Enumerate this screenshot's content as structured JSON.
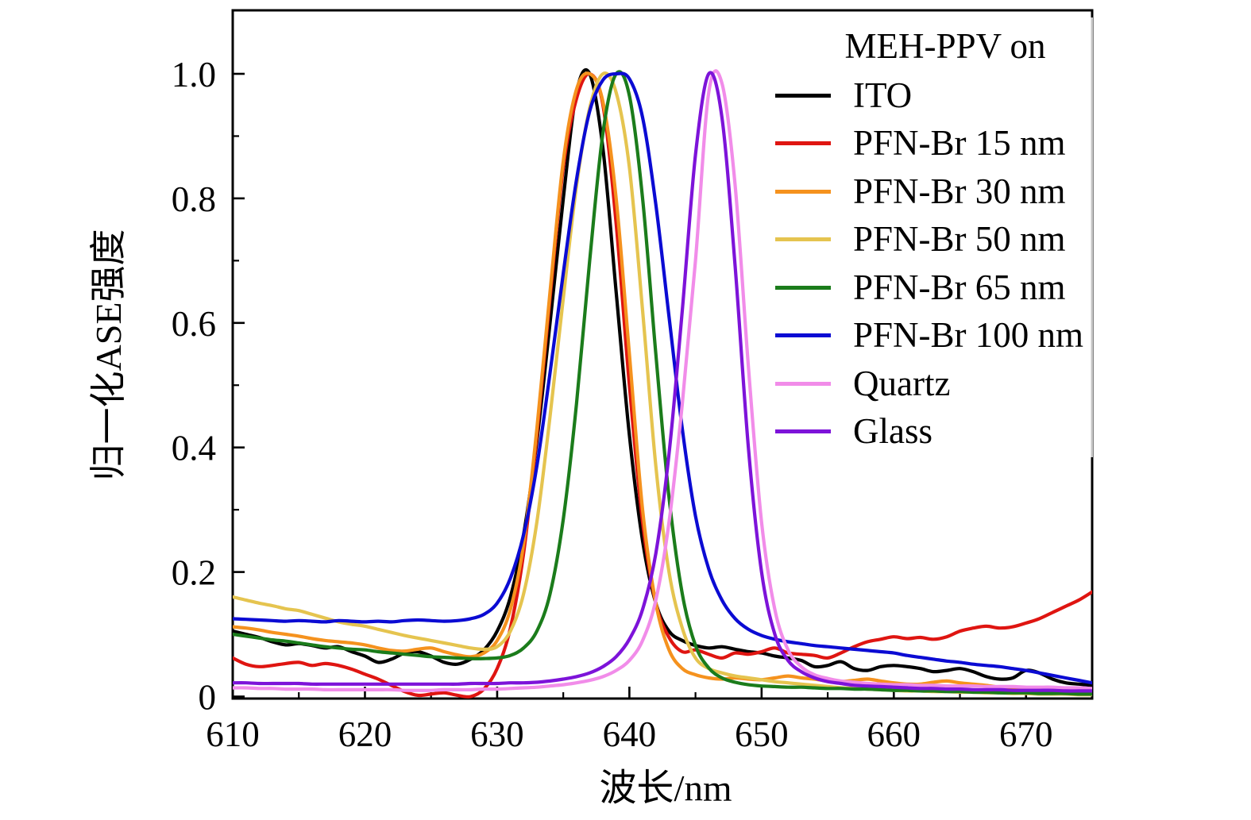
{
  "axes": {
    "x": {
      "label": "波长/nm",
      "min": 610,
      "max": 675,
      "major_ticks": [
        610,
        620,
        630,
        640,
        650,
        660,
        670
      ],
      "major_tick_labels": [
        "610",
        "620",
        "630",
        "640",
        "650",
        "660",
        "670"
      ],
      "minor_ticks": [
        615,
        625,
        635,
        645,
        655,
        665
      ]
    },
    "y": {
      "label": "归一化ASE强度",
      "min": 0,
      "max": 1.1,
      "major_ticks": [
        0,
        0.2,
        0.4,
        0.6,
        0.8,
        1.0
      ],
      "major_tick_labels": [
        "0",
        "0.2",
        "0.4",
        "0.6",
        "0.8",
        "1.0"
      ],
      "minor_ticks": [
        0.1,
        0.3,
        0.5,
        0.7,
        0.9
      ]
    }
  },
  "legend": {
    "title": "MEH-PPV on",
    "items": [
      {
        "label": "ITO",
        "color": "#000000"
      },
      {
        "label": "PFN-Br 15 nm",
        "color": "#DF1511"
      },
      {
        "label": "PFN-Br 30 nm",
        "color": "#F5921E"
      },
      {
        "label": "PFN-Br 50 nm",
        "color": "#E5C44F"
      },
      {
        "label": "PFN-Br 65 nm",
        "color": "#1B7C1B"
      },
      {
        "label": "PFN-Br 100 nm",
        "color": "#0B0BD3"
      },
      {
        "label": "Quartz",
        "color": "#F18CE9"
      },
      {
        "label": "Glass",
        "color": "#7D13D9"
      }
    ]
  },
  "chart_data": {
    "type": "line",
    "title": "",
    "xlabel": "波长/nm",
    "ylabel": "归一化ASE强度",
    "xlim": [
      610,
      675
    ],
    "ylim": [
      0,
      1.1
    ],
    "grid": false,
    "legend_position": "upper right",
    "x_unit": "nm",
    "x_start": 610,
    "x_step": 1,
    "series": [
      {
        "name": "ITO",
        "color": "#000000",
        "peak_nm": 637,
        "values": [
          0.105,
          0.1,
          0.095,
          0.088,
          0.083,
          0.085,
          0.082,
          0.078,
          0.08,
          0.072,
          0.065,
          0.055,
          0.06,
          0.07,
          0.072,
          0.065,
          0.055,
          0.052,
          0.06,
          0.075,
          0.105,
          0.16,
          0.26,
          0.41,
          0.6,
          0.8,
          0.97,
          1.0,
          0.88,
          0.65,
          0.42,
          0.25,
          0.15,
          0.105,
          0.09,
          0.082,
          0.078,
          0.08,
          0.076,
          0.072,
          0.07,
          0.065,
          0.062,
          0.058,
          0.048,
          0.05,
          0.056,
          0.045,
          0.042,
          0.048,
          0.05,
          0.048,
          0.045,
          0.04,
          0.042,
          0.045,
          0.04,
          0.032,
          0.028,
          0.03,
          0.042,
          0.038,
          0.028,
          0.022,
          0.02,
          0.018
        ]
      },
      {
        "name": "PFN-Br 15 nm",
        "color": "#DF1511",
        "peak_nm": 637,
        "values": [
          0.062,
          0.052,
          0.048,
          0.05,
          0.053,
          0.055,
          0.05,
          0.053,
          0.05,
          0.044,
          0.036,
          0.028,
          0.018,
          0.008,
          0.002,
          0.004,
          0.006,
          0.002,
          0.0,
          0.012,
          0.045,
          0.11,
          0.23,
          0.42,
          0.64,
          0.85,
          0.96,
          1.0,
          0.95,
          0.76,
          0.5,
          0.28,
          0.15,
          0.095,
          0.072,
          0.075,
          0.068,
          0.062,
          0.07,
          0.068,
          0.072,
          0.078,
          0.07,
          0.068,
          0.066,
          0.062,
          0.07,
          0.08,
          0.088,
          0.092,
          0.096,
          0.093,
          0.095,
          0.092,
          0.096,
          0.105,
          0.11,
          0.113,
          0.11,
          0.112,
          0.118,
          0.125,
          0.135,
          0.145,
          0.155,
          0.168
        ]
      },
      {
        "name": "PFN-Br 30 nm",
        "color": "#F5921E",
        "peak_nm": 637.5,
        "values": [
          0.112,
          0.11,
          0.107,
          0.103,
          0.1,
          0.097,
          0.093,
          0.09,
          0.088,
          0.086,
          0.083,
          0.078,
          0.074,
          0.073,
          0.076,
          0.078,
          0.072,
          0.067,
          0.064,
          0.07,
          0.09,
          0.14,
          0.245,
          0.43,
          0.65,
          0.86,
          0.975,
          1.0,
          0.955,
          0.8,
          0.55,
          0.3,
          0.15,
          0.075,
          0.045,
          0.035,
          0.03,
          0.028,
          0.03,
          0.028,
          0.027,
          0.03,
          0.033,
          0.03,
          0.028,
          0.025,
          0.024,
          0.026,
          0.028,
          0.025,
          0.022,
          0.02,
          0.02,
          0.023,
          0.025,
          0.022,
          0.02,
          0.018,
          0.015,
          0.013,
          0.012,
          0.013,
          0.012,
          0.01,
          0.012,
          0.01
        ]
      },
      {
        "name": "PFN-Br 50 nm",
        "color": "#E5C44F",
        "peak_nm": 638.3,
        "values": [
          0.16,
          0.155,
          0.15,
          0.146,
          0.141,
          0.138,
          0.132,
          0.126,
          0.12,
          0.116,
          0.113,
          0.108,
          0.103,
          0.098,
          0.094,
          0.09,
          0.086,
          0.082,
          0.078,
          0.076,
          0.08,
          0.105,
          0.165,
          0.28,
          0.45,
          0.64,
          0.82,
          0.945,
          1.0,
          0.97,
          0.85,
          0.62,
          0.37,
          0.2,
          0.11,
          0.062,
          0.045,
          0.038,
          0.033,
          0.03,
          0.027,
          0.024,
          0.022,
          0.02,
          0.018,
          0.016,
          0.014,
          0.013,
          0.012,
          0.011,
          0.01,
          0.009,
          0.009,
          0.008,
          0.008,
          0.007,
          0.007,
          0.006,
          0.006,
          0.005,
          0.005,
          0.004,
          0.004,
          0.004,
          0.003,
          0.003
        ]
      },
      {
        "name": "PFN-Br 65 nm",
        "color": "#1B7C1B",
        "peak_nm": 639,
        "values": [
          0.1,
          0.097,
          0.094,
          0.091,
          0.089,
          0.086,
          0.083,
          0.08,
          0.078,
          0.076,
          0.075,
          0.072,
          0.07,
          0.068,
          0.066,
          0.064,
          0.063,
          0.062,
          0.061,
          0.061,
          0.062,
          0.066,
          0.078,
          0.105,
          0.165,
          0.285,
          0.47,
          0.7,
          0.905,
          1.0,
          0.965,
          0.8,
          0.55,
          0.32,
          0.165,
          0.082,
          0.046,
          0.03,
          0.023,
          0.019,
          0.017,
          0.016,
          0.015,
          0.015,
          0.014,
          0.013,
          0.013,
          0.012,
          0.012,
          0.011,
          0.01,
          0.01,
          0.009,
          0.009,
          0.008,
          0.008,
          0.007,
          0.007,
          0.006,
          0.006,
          0.006,
          0.005,
          0.005,
          0.005,
          0.004,
          0.004
        ]
      },
      {
        "name": "PFN-Br 100 nm",
        "color": "#0B0BD3",
        "peak_nm": 639.3,
        "values": [
          0.125,
          0.124,
          0.123,
          0.122,
          0.121,
          0.122,
          0.121,
          0.12,
          0.122,
          0.121,
          0.12,
          0.121,
          0.12,
          0.122,
          0.123,
          0.122,
          0.121,
          0.122,
          0.125,
          0.132,
          0.15,
          0.19,
          0.26,
          0.37,
          0.52,
          0.68,
          0.83,
          0.94,
          0.99,
          1.0,
          0.992,
          0.93,
          0.79,
          0.61,
          0.43,
          0.29,
          0.205,
          0.155,
          0.125,
          0.108,
          0.098,
          0.092,
          0.088,
          0.085,
          0.082,
          0.08,
          0.078,
          0.076,
          0.074,
          0.072,
          0.07,
          0.066,
          0.063,
          0.06,
          0.057,
          0.055,
          0.052,
          0.05,
          0.048,
          0.045,
          0.042,
          0.038,
          0.034,
          0.03,
          0.026,
          0.022
        ]
      },
      {
        "name": "Quartz",
        "color": "#F18CE9",
        "peak_nm": 646.3,
        "values": [
          0.014,
          0.014,
          0.013,
          0.013,
          0.012,
          0.012,
          0.012,
          0.011,
          0.011,
          0.011,
          0.011,
          0.011,
          0.011,
          0.01,
          0.01,
          0.01,
          0.011,
          0.011,
          0.011,
          0.012,
          0.012,
          0.013,
          0.014,
          0.015,
          0.017,
          0.019,
          0.022,
          0.026,
          0.032,
          0.042,
          0.058,
          0.09,
          0.155,
          0.28,
          0.47,
          0.7,
          0.97,
          0.985,
          0.82,
          0.53,
          0.28,
          0.14,
          0.075,
          0.048,
          0.035,
          0.029,
          0.025,
          0.023,
          0.021,
          0.02,
          0.019,
          0.019,
          0.018,
          0.018,
          0.017,
          0.017,
          0.017,
          0.016,
          0.016,
          0.016,
          0.015,
          0.015,
          0.015,
          0.014,
          0.014,
          0.013
        ]
      },
      {
        "name": "Glass",
        "color": "#7D13D9",
        "peak_nm": 645.8,
        "values": [
          0.022,
          0.022,
          0.021,
          0.021,
          0.021,
          0.021,
          0.02,
          0.02,
          0.02,
          0.02,
          0.02,
          0.02,
          0.02,
          0.02,
          0.02,
          0.02,
          0.02,
          0.02,
          0.021,
          0.021,
          0.021,
          0.022,
          0.022,
          0.023,
          0.025,
          0.028,
          0.032,
          0.038,
          0.048,
          0.064,
          0.092,
          0.14,
          0.23,
          0.39,
          0.62,
          0.87,
          1.0,
          0.93,
          0.69,
          0.4,
          0.2,
          0.1,
          0.058,
          0.04,
          0.03,
          0.024,
          0.021,
          0.018,
          0.017,
          0.016,
          0.015,
          0.014,
          0.013,
          0.013,
          0.012,
          0.012,
          0.011,
          0.011,
          0.011,
          0.01,
          0.01,
          0.01,
          0.01,
          0.009,
          0.009,
          0.009
        ]
      }
    ]
  }
}
